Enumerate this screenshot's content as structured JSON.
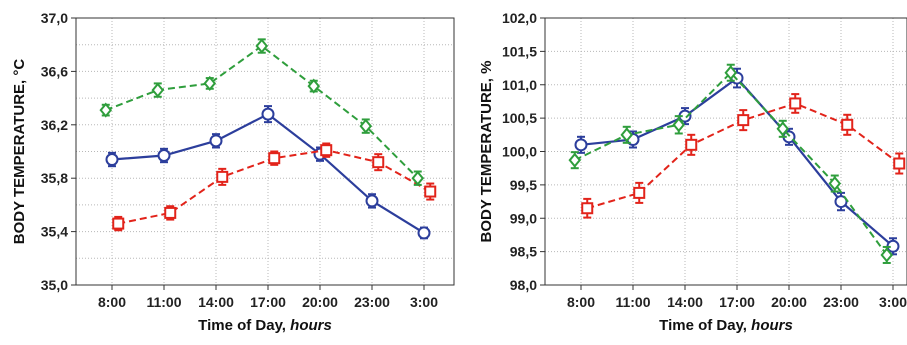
{
  "chart_data": [
    {
      "type": "line",
      "xlabel_main": "Time of Day, ",
      "xlabel_unit": "hours",
      "ylabel": "BODY TEMPERATURE, °C",
      "categories": [
        "8:00",
        "11:00",
        "14:00",
        "17:00",
        "20:00",
        "23:00",
        "3:00"
      ],
      "ylim": [
        35.0,
        37.0
      ],
      "yticks": [
        "35,0",
        "35,4",
        "35,8",
        "36,2",
        "36,6",
        "37,0"
      ],
      "ytick_values": [
        35.0,
        35.4,
        35.8,
        36.2,
        36.6,
        37.0
      ],
      "minor_step": 0.2,
      "series": [
        {
          "color": "#2c3e9c",
          "dash": "solid",
          "marker": "circle",
          "x_offset": 0.0,
          "values": [
            35.94,
            35.97,
            36.08,
            36.28,
            35.98,
            35.63,
            35.39
          ],
          "err": [
            0.05,
            0.05,
            0.05,
            0.06,
            0.05,
            0.05,
            0.04
          ]
        },
        {
          "color": "#e2231a",
          "dash": "dashed",
          "marker": "square",
          "x_offset": 0.12,
          "values": [
            35.46,
            35.54,
            35.81,
            35.95,
            36.01,
            35.92,
            35.7
          ],
          "err": [
            0.05,
            0.05,
            0.06,
            0.05,
            0.05,
            0.06,
            0.06
          ]
        },
        {
          "color": "#2f9e3c",
          "dash": "dashed",
          "marker": "diamond",
          "x_offset": -0.12,
          "values": [
            36.31,
            36.46,
            36.51,
            36.79,
            36.49,
            36.19,
            35.8
          ],
          "err": [
            0.04,
            0.05,
            0.04,
            0.05,
            0.04,
            0.05,
            0.05
          ]
        }
      ]
    },
    {
      "type": "line",
      "xlabel_main": "Time of Day, ",
      "xlabel_unit": "hours",
      "ylabel": "BODY TEMPERATURE, %",
      "categories": [
        "8:00",
        "11:00",
        "14:00",
        "17:00",
        "20:00",
        "23:00",
        "3:00"
      ],
      "ylim": [
        98.0,
        102.0
      ],
      "yticks": [
        "98,0",
        "98,5",
        "99,0",
        "99,5",
        "100,0",
        "100,5",
        "101,0",
        "101,5",
        "102,0"
      ],
      "ytick_values": [
        98.0,
        98.5,
        99.0,
        99.5,
        100.0,
        100.5,
        101.0,
        101.5,
        102.0
      ],
      "minor_step": 0.5,
      "series": [
        {
          "color": "#2c3e9c",
          "dash": "solid",
          "marker": "circle",
          "x_offset": 0.0,
          "values": [
            100.1,
            100.18,
            100.53,
            101.1,
            100.22,
            99.25,
            98.58
          ],
          "err": [
            0.12,
            0.12,
            0.12,
            0.14,
            0.12,
            0.13,
            0.12
          ]
        },
        {
          "color": "#e2231a",
          "dash": "dashed",
          "marker": "square",
          "x_offset": 0.12,
          "values": [
            99.15,
            99.38,
            100.1,
            100.47,
            100.72,
            100.4,
            99.82
          ],
          "err": [
            0.14,
            0.15,
            0.15,
            0.15,
            0.14,
            0.15,
            0.15
          ]
        },
        {
          "color": "#2f9e3c",
          "dash": "dashed",
          "marker": "diamond",
          "x_offset": -0.12,
          "values": [
            99.87,
            100.25,
            100.4,
            101.18,
            100.34,
            99.52,
            98.45
          ],
          "err": [
            0.12,
            0.12,
            0.13,
            0.12,
            0.12,
            0.12,
            0.12
          ]
        }
      ]
    }
  ]
}
